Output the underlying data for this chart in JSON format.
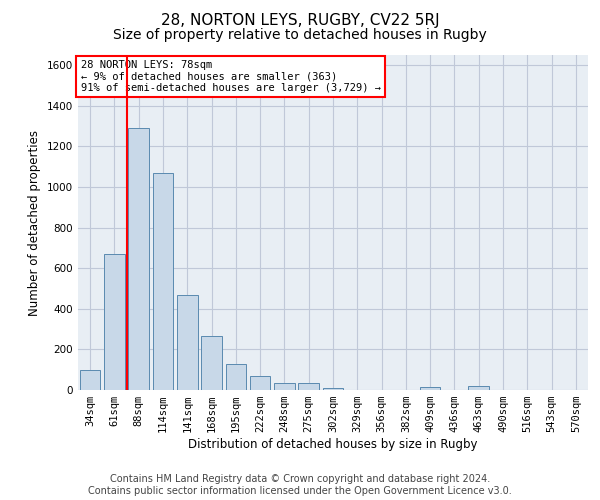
{
  "title": "28, NORTON LEYS, RUGBY, CV22 5RJ",
  "subtitle": "Size of property relative to detached houses in Rugby",
  "xlabel": "Distribution of detached houses by size in Rugby",
  "ylabel": "Number of detached properties",
  "footer_line1": "Contains HM Land Registry data © Crown copyright and database right 2024.",
  "footer_line2": "Contains public sector information licensed under the Open Government Licence v3.0.",
  "categories": [
    "34sqm",
    "61sqm",
    "88sqm",
    "114sqm",
    "141sqm",
    "168sqm",
    "195sqm",
    "222sqm",
    "248sqm",
    "275sqm",
    "302sqm",
    "329sqm",
    "356sqm",
    "382sqm",
    "409sqm",
    "436sqm",
    "463sqm",
    "490sqm",
    "516sqm",
    "543sqm",
    "570sqm"
  ],
  "values": [
    100,
    670,
    1290,
    1070,
    470,
    265,
    130,
    68,
    35,
    35,
    12,
    0,
    0,
    0,
    15,
    0,
    20,
    0,
    0,
    0,
    0
  ],
  "bar_color": "#c8d8e8",
  "bar_edge_color": "#5a8ab0",
  "grid_color": "#c0c8d8",
  "background_color": "#e8eef4",
  "annotation_line1": "28 NORTON LEYS: 78sqm",
  "annotation_line2": "← 9% of detached houses are smaller (363)",
  "annotation_line3": "91% of semi-detached houses are larger (3,729) →",
  "red_line_x": 1.5,
  "ylim": [
    0,
    1650
  ],
  "yticks": [
    0,
    200,
    400,
    600,
    800,
    1000,
    1200,
    1400,
    1600
  ],
  "title_fontsize": 11,
  "subtitle_fontsize": 10,
  "axis_label_fontsize": 8.5,
  "tick_fontsize": 7.5,
  "footer_fontsize": 7
}
